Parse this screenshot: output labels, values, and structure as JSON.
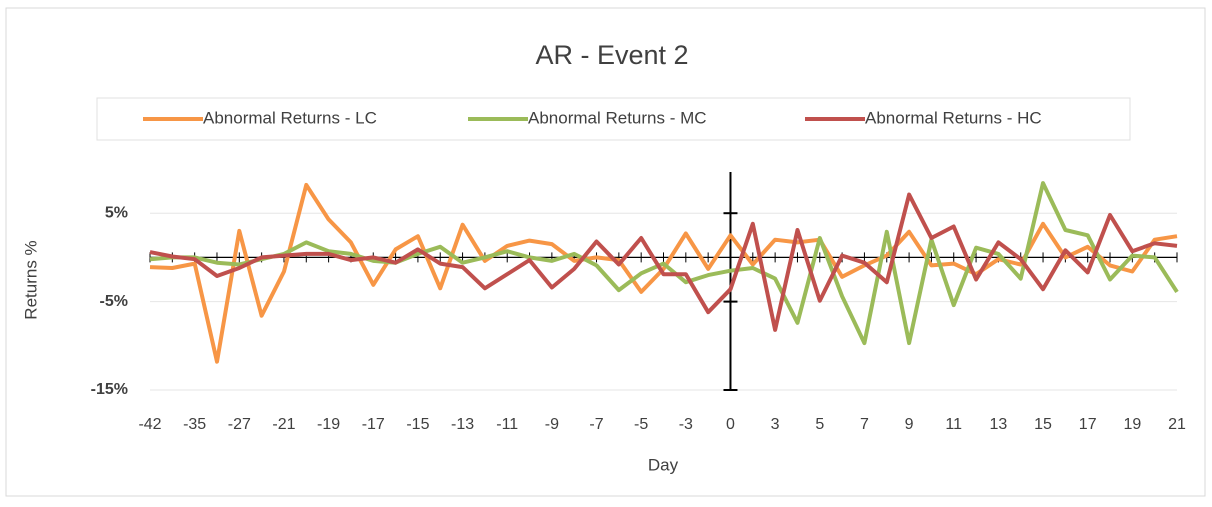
{
  "chart_data": {
    "type": "line",
    "title": "AR - Event 2",
    "x_label": "Day",
    "y_label": "Returns %",
    "categories": [
      "-42",
      null,
      "-35",
      null,
      "-27",
      null,
      "-21",
      null,
      "-19",
      null,
      "-17",
      null,
      "-15",
      null,
      "-13",
      null,
      "-11",
      null,
      "-9",
      null,
      "-7",
      null,
      "-5",
      null,
      "-3",
      null,
      "0",
      null,
      "3",
      null,
      "5",
      null,
      "7",
      null,
      "9",
      null,
      "11",
      null,
      "13",
      null,
      "15",
      null,
      "17",
      null,
      "19",
      null,
      "21"
    ],
    "series": [
      {
        "name": "Abnormal Returns - LC",
        "color": "#f79646",
        "values": [
          -1.1,
          -1.2,
          -0.7,
          -11.8,
          3.0,
          -6.6,
          -1.6,
          8.2,
          4.3,
          1.7,
          -3.1,
          0.9,
          2.4,
          -3.5,
          3.7,
          -0.4,
          1.3,
          1.9,
          1.5,
          -0.4,
          0,
          -0.3,
          -3.9,
          -1.3,
          2.7,
          -1.3,
          2.5,
          -0.8,
          2.0,
          1.7,
          2.0,
          -2.2,
          -0.9,
          0.2,
          2.9,
          -0.9,
          -0.7,
          -1.9,
          -0.2,
          -0.8,
          3.8,
          0,
          1.2,
          -0.9,
          -1.6,
          2.0,
          2.4
        ]
      },
      {
        "name": "Abnormal Returns - MC",
        "color": "#9bbb59",
        "values": [
          -0.2,
          0,
          0,
          -0.6,
          -0.8,
          -0.2,
          0.4,
          1.7,
          0.7,
          0.4,
          -0.4,
          -0.6,
          0.4,
          1.2,
          -0.6,
          0,
          0.7,
          0,
          -0.4,
          0.4,
          -0.9,
          -3.7,
          -1.8,
          -0.7,
          -2.8,
          -2.0,
          -1.5,
          -1.2,
          -2.4,
          -7.4,
          2.2,
          -4.4,
          -9.7,
          2.9,
          -9.7,
          2.0,
          -5.4,
          1.1,
          0.4,
          -2.4,
          8.4,
          3.1,
          2.5,
          -2.5,
          0.2,
          0,
          -3.9
        ]
      },
      {
        "name": "Abnormal Returns - HC",
        "color": "#c0504d",
        "values": [
          0.6,
          0.1,
          -0.2,
          -2.1,
          -1.2,
          0,
          0.2,
          0.4,
          0.4,
          -0.3,
          0,
          -0.6,
          0.9,
          -0.7,
          -1.1,
          -3.5,
          -1.9,
          -0.3,
          -3.4,
          -1.3,
          1.8,
          -0.8,
          2.2,
          -1.9,
          -1.9,
          -6.2,
          -3.6,
          3.8,
          -8.2,
          3.1,
          -4.9,
          0.2,
          -0.6,
          -2.8,
          7.1,
          2.2,
          3.5,
          -2.5,
          1.7,
          -0.2,
          -3.6,
          0.8,
          -1.7,
          4.8,
          0.7,
          1.6,
          1.3
        ]
      }
    ],
    "ylim": [
      -15,
      10
    ],
    "yticks": [
      {
        "value": -15,
        "label": "-15%"
      },
      {
        "value": -5,
        "label": "-5%"
      },
      {
        "value": 5,
        "label": "5%"
      }
    ],
    "grid": true,
    "legend": "top"
  }
}
